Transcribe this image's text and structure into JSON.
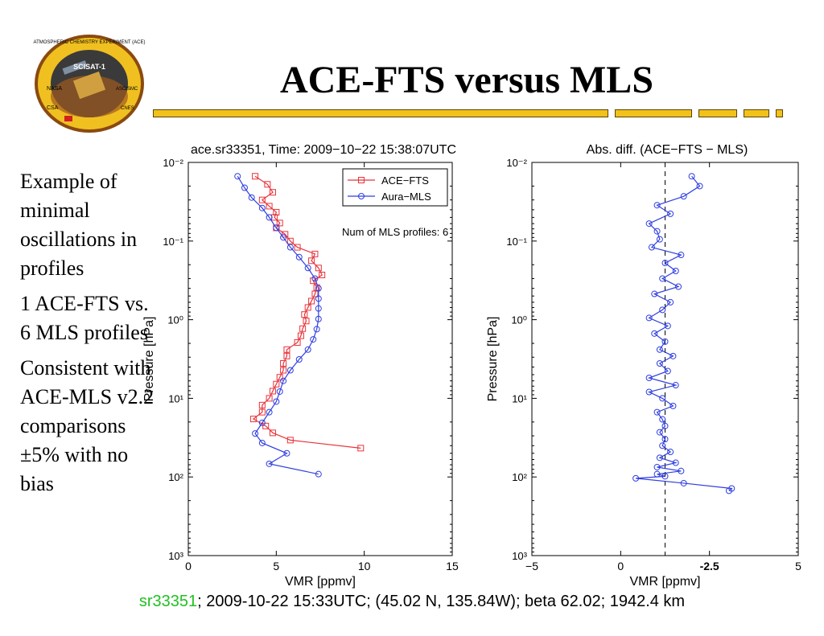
{
  "slide": {
    "title": "ACE-FTS versus MLS",
    "logo_text": [
      "ATMOSPHERIC CHEMISTRY EXPERIMENT (ACE)",
      "SCISAT-1",
      "NASA",
      "CSA",
      "ASC/SMC",
      "CNES"
    ],
    "left_text": [
      "Example of minimal oscillations in profiles",
      "1 ACE-FTS vs. 6 MLS profiles",
      "Consistent with ACE-MLS v2.2 comparisons ±5% with no bias"
    ],
    "footer_link": "sr33351",
    "footer_rest": "; 2009-10-22 15:33UTC; (45.02 N, 135.84W); beta 62.02; 1942.4 km",
    "colors": {
      "accent_bar": "#F2C21B",
      "footer_link": "#22c022",
      "ace": "#e8333a",
      "mls": "#2f3fe0"
    }
  },
  "chart_data": [
    {
      "type": "line",
      "title": "ace.sr33351, Time: 2009−10−22 15:38:07UTC",
      "xlabel": "VMR [ppmv]",
      "ylabel": "Pressure [hPa]",
      "xlim": [
        0,
        15
      ],
      "ylim": [
        0.01,
        1000
      ],
      "yscale": "log",
      "y_reversed": true,
      "xticks": [
        "0",
        "5",
        "10",
        "15"
      ],
      "yticks": [
        "10⁻²",
        "10⁻¹",
        "10⁰",
        "10¹",
        "10²",
        "10³"
      ],
      "legend_position": "top-right",
      "annotation": "Num of MLS profiles: 6",
      "series": [
        {
          "name": "ACE−FTS",
          "marker": "square",
          "color": "#e8333a",
          "x": [
            3.8,
            4.5,
            4.8,
            4.2,
            4.6,
            5.0,
            4.9,
            5.2,
            5.0,
            5.5,
            5.8,
            6.2,
            7.2,
            7.0,
            7.4,
            7.6,
            7.1,
            7.3,
            7.2,
            7.0,
            6.8,
            6.6,
            6.7,
            6.5,
            6.4,
            6.2,
            5.6,
            5.6,
            5.4,
            5.4,
            5.2,
            5.0,
            4.8,
            4.6,
            4.2,
            4.2,
            3.7,
            4.4,
            4.8,
            5.8,
            9.8
          ],
          "y": [
            0.015,
            0.019,
            0.024,
            0.03,
            0.036,
            0.043,
            0.05,
            0.059,
            0.068,
            0.082,
            0.1,
            0.12,
            0.146,
            0.178,
            0.22,
            0.27,
            0.32,
            0.39,
            0.47,
            0.58,
            0.7,
            0.86,
            1.04,
            1.3,
            1.6,
            1.95,
            2.4,
            2.9,
            3.6,
            4.4,
            5.4,
            6.6,
            8.1,
            10.0,
            12.2,
            15.0,
            18.3,
            22.5,
            27.5,
            34.0,
            43.0
          ]
        },
        {
          "name": "Aura−MLS",
          "marker": "circle",
          "color": "#2f3fe0",
          "x": [
            2.8,
            3.2,
            3.6,
            4.2,
            4.6,
            5.0,
            5.4,
            5.8,
            6.3,
            6.8,
            7.2,
            7.4,
            7.4,
            7.4,
            7.4,
            7.3,
            7.1,
            6.8,
            6.3,
            5.8,
            5.4,
            5.2,
            5.0,
            4.6,
            4.2,
            3.8,
            4.2,
            5.6,
            4.6,
            7.4
          ],
          "y": [
            0.015,
            0.021,
            0.028,
            0.038,
            0.05,
            0.068,
            0.09,
            0.12,
            0.16,
            0.22,
            0.3,
            0.4,
            0.54,
            0.72,
            0.98,
            1.32,
            1.78,
            2.4,
            3.2,
            4.4,
            6.0,
            8.2,
            11.0,
            15.0,
            20.5,
            28.0,
            37.0,
            50.0,
            68.0,
            92.0
          ]
        }
      ]
    },
    {
      "type": "line",
      "title": "Abs. diff. (ACE−FTS − MLS)",
      "xlabel": "VMR [ppmv]",
      "ylabel": "Pressure [hPa]",
      "xlim": [
        -5,
        5
      ],
      "ylim": [
        0.01,
        1000
      ],
      "yscale": "log",
      "y_reversed": true,
      "xticks": [
        "−5",
        "0",
        "-2.5",
        "5"
      ],
      "yticks": [
        "10⁻²",
        "10⁻¹",
        "10⁰",
        "10¹",
        "10²",
        "10³"
      ],
      "reference_line": 0,
      "series": [
        {
          "color": "#2f3fe0",
          "marker": "circle",
          "x": [
            1.0,
            1.3,
            0.7,
            -0.3,
            0.2,
            -0.6,
            -0.3,
            -0.2,
            -0.5,
            0.6,
            0.0,
            0.4,
            -0.1,
            0.5,
            -0.4,
            0.2,
            -0.1,
            -0.6,
            0.1,
            -0.4,
            0.0,
            -0.2,
            0.3,
            -0.2,
            0.1,
            -0.6,
            0.4,
            -0.6,
            -0.1,
            0.3,
            -0.3,
            -0.1,
            0.0,
            -0.2,
            0.0,
            -0.1,
            0.2,
            -0.2,
            0.4,
            -0.3,
            0.6,
            -0.3,
            0.0,
            -1.1,
            0.7,
            2.5,
            2.4
          ],
          "y": [
            0.015,
            0.02,
            0.027,
            0.035,
            0.045,
            0.06,
            0.075,
            0.095,
            0.12,
            0.15,
            0.19,
            0.24,
            0.3,
            0.38,
            0.47,
            0.6,
            0.75,
            0.95,
            1.2,
            1.5,
            1.9,
            2.4,
            2.9,
            3.6,
            4.5,
            5.5,
            6.8,
            8.3,
            10.0,
            12.5,
            15.0,
            18.5,
            22.5,
            27.0,
            33.0,
            40.0,
            48.0,
            57.0,
            66.0,
            75.0,
            84.0,
            92.0,
            98.0,
            104.0,
            120.0,
            140.0,
            150.0
          ]
        }
      ]
    }
  ]
}
